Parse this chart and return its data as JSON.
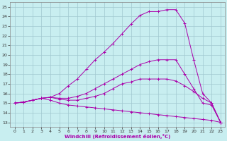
{
  "xlabel": "Windchill (Refroidissement éolien,°C)",
  "background_color": "#c8eef0",
  "line_color": "#aa00aa",
  "grid_color": "#a0c8d0",
  "xlim": [
    -0.5,
    23.5
  ],
  "ylim": [
    12.5,
    25.5
  ],
  "xticks": [
    0,
    1,
    2,
    3,
    4,
    5,
    6,
    7,
    8,
    9,
    10,
    11,
    12,
    13,
    14,
    15,
    16,
    17,
    18,
    19,
    20,
    21,
    22,
    23
  ],
  "yticks": [
    13,
    14,
    15,
    16,
    17,
    18,
    19,
    20,
    21,
    22,
    23,
    24,
    25
  ],
  "lines": [
    [
      15.0,
      15.1,
      15.3,
      15.5,
      15.6,
      16.0,
      16.8,
      17.5,
      18.5,
      19.5,
      20.3,
      21.2,
      22.2,
      23.2,
      24.1,
      24.5,
      24.5,
      24.7,
      24.7,
      23.3,
      19.5,
      16.0,
      15.0,
      13.0
    ],
    [
      15.0,
      15.1,
      15.3,
      15.5,
      15.6,
      15.5,
      15.5,
      15.7,
      16.0,
      16.5,
      17.0,
      17.5,
      18.0,
      18.5,
      19.0,
      19.3,
      19.5,
      19.5,
      19.5,
      18.0,
      16.5,
      15.0,
      14.8,
      13.0
    ],
    [
      15.0,
      15.1,
      15.3,
      15.5,
      15.6,
      15.4,
      15.3,
      15.3,
      15.5,
      15.7,
      16.0,
      16.5,
      17.0,
      17.2,
      17.5,
      17.5,
      17.5,
      17.5,
      17.3,
      16.8,
      16.2,
      15.5,
      15.0,
      13.0
    ],
    [
      15.0,
      15.1,
      15.3,
      15.5,
      15.3,
      15.0,
      14.8,
      14.7,
      14.6,
      14.5,
      14.4,
      14.3,
      14.2,
      14.1,
      14.0,
      13.9,
      13.8,
      13.7,
      13.6,
      13.5,
      13.4,
      13.3,
      13.2,
      13.0
    ]
  ]
}
